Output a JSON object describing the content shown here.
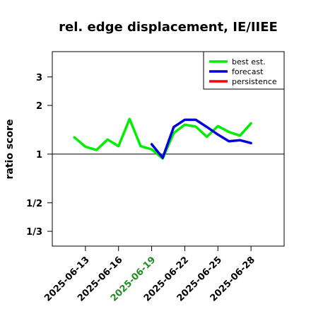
{
  "chart_data": {
    "type": "line",
    "title": "rel. edge displacement, IE/IIEE",
    "xlabel": "",
    "ylabel": "ratio score",
    "y_scale": "log",
    "ylim": [
      0.27,
      4.3
    ],
    "xlim": [
      "2025-06-10",
      "2025-07-01"
    ],
    "y_ticks": [
      {
        "value": 3,
        "label": "3"
      },
      {
        "value": 2,
        "label": "2"
      },
      {
        "value": 1,
        "label": "1"
      },
      {
        "value": 0.5,
        "label": "1/2"
      },
      {
        "value": 0.3333,
        "label": "1/3"
      }
    ],
    "x_ticks": [
      {
        "date": "2025-06-13",
        "label": "2025-06-13",
        "color": "#000000"
      },
      {
        "date": "2025-06-16",
        "label": "2025-06-16",
        "color": "#000000"
      },
      {
        "date": "2025-06-19",
        "label": "2025-06-19",
        "color": "#228b22"
      },
      {
        "date": "2025-06-22",
        "label": "2025-06-22",
        "color": "#000000"
      },
      {
        "date": "2025-06-25",
        "label": "2025-06-25",
        "color": "#000000"
      },
      {
        "date": "2025-06-28",
        "label": "2025-06-28",
        "color": "#000000"
      }
    ],
    "reference_line": 1,
    "grid": false,
    "legend_position": "top-right",
    "series": [
      {
        "name": "best est.",
        "color": "#00ee00",
        "x": [
          "2025-06-12",
          "2025-06-13",
          "2025-06-14",
          "2025-06-15",
          "2025-06-16",
          "2025-06-17",
          "2025-06-18",
          "2025-06-19",
          "2025-06-20",
          "2025-06-21",
          "2025-06-22",
          "2025-06-23",
          "2025-06-24",
          "2025-06-25",
          "2025-06-26",
          "2025-06-27",
          "2025-06-28"
        ],
        "values": [
          1.27,
          1.11,
          1.06,
          1.23,
          1.12,
          1.65,
          1.12,
          1.07,
          0.94,
          1.35,
          1.52,
          1.48,
          1.28,
          1.49,
          1.37,
          1.3,
          1.55
        ]
      },
      {
        "name": "forecast",
        "color": "#0000dd",
        "x": [
          "2025-06-19",
          "2025-06-20",
          "2025-06-21",
          "2025-06-22",
          "2025-06-23",
          "2025-06-24",
          "2025-06-25",
          "2025-06-26",
          "2025-06-27",
          "2025-06-28"
        ],
        "values": [
          1.15,
          0.95,
          1.47,
          1.63,
          1.63,
          1.47,
          1.32,
          1.2,
          1.22,
          1.17
        ]
      },
      {
        "name": "persistence",
        "color": "#ff0000",
        "x": [],
        "values": []
      }
    ]
  }
}
